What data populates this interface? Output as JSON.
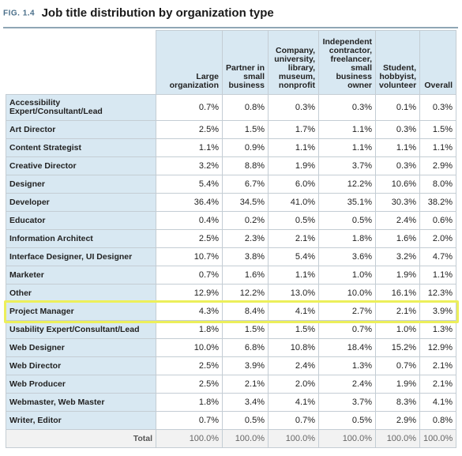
{
  "figure": {
    "label": "FIG. 1.4",
    "title": "Job title distribution by organization type"
  },
  "columns": [
    "Large organization",
    "Partner in small business",
    "Company, university, library, museum, nonprofit",
    "Independent contractor, freelancer, small business owner",
    "Student, hobbyist, volunteer",
    "Overall"
  ],
  "rows": [
    {
      "label": "Accessibility Expert/Consultant/Lead",
      "values": [
        "0.7%",
        "0.8%",
        "0.3%",
        "0.3%",
        "0.1%",
        "0.3%"
      ]
    },
    {
      "label": "Art Director",
      "values": [
        "2.5%",
        "1.5%",
        "1.7%",
        "1.1%",
        "0.3%",
        "1.5%"
      ]
    },
    {
      "label": "Content Strategist",
      "values": [
        "1.1%",
        "0.9%",
        "1.1%",
        "1.1%",
        "1.1%",
        "1.1%"
      ]
    },
    {
      "label": "Creative Director",
      "values": [
        "3.2%",
        "8.8%",
        "1.9%",
        "3.7%",
        "0.3%",
        "2.9%"
      ]
    },
    {
      "label": "Designer",
      "values": [
        "5.4%",
        "6.7%",
        "6.0%",
        "12.2%",
        "10.6%",
        "8.0%"
      ]
    },
    {
      "label": "Developer",
      "values": [
        "36.4%",
        "34.5%",
        "41.0%",
        "35.1%",
        "30.3%",
        "38.2%"
      ]
    },
    {
      "label": "Educator",
      "values": [
        "0.4%",
        "0.2%",
        "0.5%",
        "0.5%",
        "2.4%",
        "0.6%"
      ]
    },
    {
      "label": "Information Architect",
      "values": [
        "2.5%",
        "2.3%",
        "2.1%",
        "1.8%",
        "1.6%",
        "2.0%"
      ]
    },
    {
      "label": "Interface Designer, UI Designer",
      "values": [
        "10.7%",
        "3.8%",
        "5.4%",
        "3.6%",
        "3.2%",
        "4.7%"
      ]
    },
    {
      "label": "Marketer",
      "values": [
        "0.7%",
        "1.6%",
        "1.1%",
        "1.0%",
        "1.9%",
        "1.1%"
      ]
    },
    {
      "label": "Other",
      "values": [
        "12.9%",
        "12.2%",
        "13.0%",
        "10.0%",
        "16.1%",
        "12.3%"
      ]
    },
    {
      "label": "Project Manager",
      "values": [
        "4.3%",
        "8.4%",
        "4.1%",
        "2.7%",
        "2.1%",
        "3.9%"
      ]
    },
    {
      "label": "Usability Expert/Consultant/Lead",
      "values": [
        "1.8%",
        "1.5%",
        "1.5%",
        "0.7%",
        "1.0%",
        "1.3%"
      ]
    },
    {
      "label": "Web Designer",
      "values": [
        "10.0%",
        "6.8%",
        "10.8%",
        "18.4%",
        "15.2%",
        "12.9%"
      ]
    },
    {
      "label": "Web Director",
      "values": [
        "2.5%",
        "3.9%",
        "2.4%",
        "1.3%",
        "0.7%",
        "2.1%"
      ]
    },
    {
      "label": "Web Producer",
      "values": [
        "2.5%",
        "2.1%",
        "2.0%",
        "2.4%",
        "1.9%",
        "2.1%"
      ]
    },
    {
      "label": "Webmaster, Web Master",
      "values": [
        "1.8%",
        "3.4%",
        "4.1%",
        "3.7%",
        "8.3%",
        "4.1%"
      ]
    },
    {
      "label": "Writer, Editor",
      "values": [
        "0.7%",
        "0.5%",
        "0.7%",
        "0.5%",
        "2.9%",
        "0.8%"
      ]
    }
  ],
  "total": {
    "label": "Total",
    "values": [
      "100.0%",
      "100.0%",
      "100.0%",
      "100.0%",
      "100.0%",
      "100.0%"
    ]
  },
  "highlighted_row": "Project Manager",
  "colors": {
    "header_bg": "#d8e8f2",
    "highlight": "#ecef5a",
    "figure_label": "#4a6f8a"
  }
}
